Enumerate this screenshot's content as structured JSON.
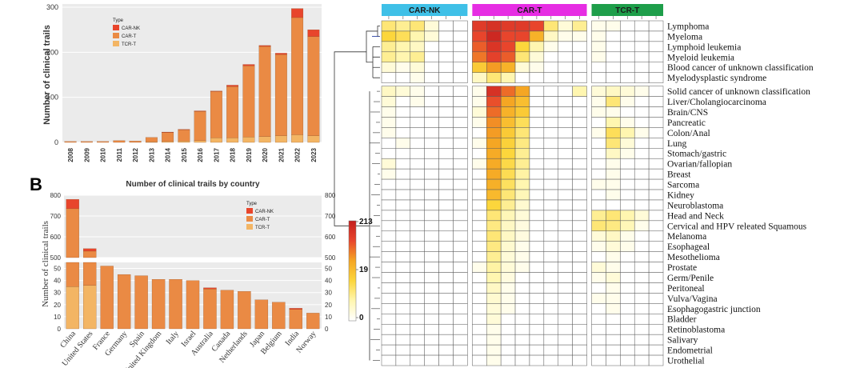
{
  "chart_data": [
    {
      "type": "bar",
      "title": "",
      "xlabel": "",
      "ylabel": "Number of clinical trails",
      "ylim": [
        0,
        300
      ],
      "yticks": [
        0,
        100,
        200,
        300
      ],
      "categories": [
        "2008",
        "2009",
        "2010",
        "2011",
        "2012",
        "2013",
        "2014",
        "2015",
        "2016",
        "2017",
        "2018",
        "2019",
        "2020",
        "2021",
        "2022",
        "2023"
      ],
      "series": [
        {
          "name": "CAR-NK",
          "color": "#e8452c",
          "values": [
            0,
            0,
            0,
            0,
            0,
            0,
            1,
            1,
            1,
            1,
            3,
            3,
            2,
            3,
            20,
            15
          ]
        },
        {
          "name": "CAR-T",
          "color": "#ea8a44",
          "values": [
            2,
            2,
            2,
            4,
            3,
            10,
            20,
            25,
            65,
            103,
            114,
            158,
            200,
            180,
            260,
            220
          ]
        },
        {
          "name": "TCR-T",
          "color": "#f3b564",
          "values": [
            0,
            0,
            0,
            0,
            0,
            1,
            2,
            3,
            4,
            10,
            10,
            12,
            13,
            15,
            17,
            15
          ]
        }
      ],
      "legend": {
        "title": "Type",
        "position": "top-center"
      }
    },
    {
      "type": "bar",
      "panel_label": "B",
      "title": "Number of clinical trails by country",
      "xlabel": "",
      "ylabel": "Number of clinical trails",
      "axis_break": {
        "lower": [
          0,
          55
        ],
        "upper": [
          500,
          800
        ]
      },
      "yticks_lower": [
        0,
        10,
        20,
        30,
        40,
        50
      ],
      "yticks_upper": [
        500,
        600,
        700,
        800
      ],
      "categories": [
        "China",
        "United States",
        "France",
        "Germany",
        "Spain",
        "United Kingdom",
        "Italy",
        "Israel",
        "Australia",
        "Canada",
        "Netherlands",
        "Japan",
        "Belgium",
        "India",
        "Norway"
      ],
      "series": [
        {
          "name": "CAR-NK",
          "color": "#e8452c",
          "values": [
            45,
            12,
            0,
            0,
            0,
            0,
            0,
            0,
            1,
            0,
            0,
            0,
            0,
            1,
            0
          ]
        },
        {
          "name": "CAR-T",
          "color": "#ea8a44",
          "values": [
            700,
            495,
            52,
            45,
            44,
            41,
            41,
            40,
            33,
            32,
            31,
            24,
            22,
            16,
            13
          ]
        },
        {
          "name": "TCR-T",
          "color": "#f3b564",
          "values": [
            35,
            36,
            0,
            0,
            0,
            0,
            0,
            0,
            0,
            0,
            0,
            0,
            0,
            0,
            0
          ]
        }
      ],
      "legend": {
        "title": "Type",
        "position": "top-right"
      }
    },
    {
      "type": "heatmap",
      "column_groups": [
        {
          "name": "CAR-NK",
          "color": "#3fc0e7",
          "ncols": 6
        },
        {
          "name": "CAR-T",
          "color": "#e62de3",
          "ncols": 8
        },
        {
          "name": "TCR-T",
          "color": "#1e9e4a",
          "ncols": 5
        }
      ],
      "colorbar": {
        "ticks": [
          "213",
          "19",
          "0"
        ],
        "colors": [
          "#ffffff",
          "#fff6b0",
          "#fcd63c",
          "#f5a623",
          "#e8452c",
          "#c41e1e"
        ]
      },
      "rows": [
        "Lymphoma",
        "Myeloma",
        "Lymphoid leukemia",
        "Myeloid leukemia",
        "Blood cancer of unknown classification",
        "Myelodysplastic syndrome",
        "Solid cancer of unknown classification",
        "Liver/Cholangiocarcinoma",
        "Brain/CNS",
        "Pancreatic",
        "Colon/Anal",
        "Lung",
        "Stomach/gastric",
        "Ovarian/fallopian",
        "Breast",
        "Sarcoma",
        "Kidney",
        "Neuroblastoma",
        "Head and Neck",
        "Cervical and HPV releated Squamous",
        "Melanoma",
        "Esophageal",
        "Mesothelioma",
        "Prostate",
        "Germ/Penile",
        "Peritoneal",
        "Vulva/Vagina",
        "Esophagogastric junction",
        "Bladder",
        "Retinoblastoma",
        "Salivary",
        "Endometrial",
        "Urothelial"
      ],
      "values": [
        [
          0.3,
          0.25,
          0.3,
          0.1,
          0,
          0,
          0.85,
          0.9,
          0.85,
          0.85,
          0.8,
          0.3,
          0.1,
          0.25,
          0.05,
          0.05,
          0,
          0,
          0
        ],
        [
          0.4,
          0.35,
          0.2,
          0.1,
          0,
          0,
          0.8,
          0.95,
          0.8,
          0.8,
          0.55,
          0.15,
          0.05,
          0.05,
          0.05,
          0,
          0,
          0,
          0
        ],
        [
          0.25,
          0.2,
          0.15,
          0,
          0,
          0,
          0.75,
          0.88,
          0.8,
          0.4,
          0.2,
          0.05,
          0,
          0,
          0.05,
          0,
          0,
          0,
          0
        ],
        [
          0.25,
          0.2,
          0.25,
          0,
          0,
          0,
          0.7,
          0.82,
          0.75,
          0.3,
          0.1,
          0,
          0,
          0,
          0.05,
          0,
          0,
          0,
          0
        ],
        [
          0.1,
          0.05,
          0.1,
          0,
          0,
          0,
          0.45,
          0.62,
          0.55,
          0.1,
          0.05,
          0,
          0,
          0,
          0,
          0,
          0,
          0,
          0
        ],
        [
          0,
          0,
          0.05,
          0,
          0,
          0,
          0.15,
          0.3,
          0.2,
          0,
          0,
          0,
          0,
          0,
          0,
          0,
          0,
          0,
          0
        ],
        [
          0.15,
          0.1,
          0.05,
          0,
          0,
          0,
          0.05,
          0.9,
          0.72,
          0.6,
          0,
          0,
          0,
          0.2,
          0.1,
          0.15,
          0.1,
          0.05,
          0
        ],
        [
          0.1,
          0,
          0.05,
          0,
          0,
          0,
          0.05,
          0.78,
          0.6,
          0.5,
          0,
          0,
          0,
          0,
          0.05,
          0.3,
          0.05,
          0,
          0
        ],
        [
          0.05,
          0,
          0,
          0,
          0,
          0,
          0.1,
          0.72,
          0.55,
          0.45,
          0,
          0,
          0,
          0,
          0.05,
          0.05,
          0,
          0,
          0
        ],
        [
          0.05,
          0,
          0,
          0,
          0,
          0,
          0.05,
          0.65,
          0.5,
          0.35,
          0,
          0,
          0,
          0,
          0,
          0.2,
          0.05,
          0,
          0
        ],
        [
          0.05,
          0,
          0,
          0,
          0,
          0,
          0,
          0.62,
          0.45,
          0.3,
          0,
          0,
          0,
          0,
          0.05,
          0.35,
          0.2,
          0.05,
          0
        ],
        [
          0,
          0.05,
          0,
          0,
          0,
          0,
          0.05,
          0.6,
          0.42,
          0.28,
          0,
          0,
          0,
          0,
          0,
          0.3,
          0.1,
          0,
          0
        ],
        [
          0,
          0,
          0,
          0,
          0,
          0,
          0,
          0.58,
          0.4,
          0.25,
          0,
          0,
          0,
          0,
          0,
          0.15,
          0.05,
          0,
          0
        ],
        [
          0.1,
          0,
          0,
          0,
          0,
          0,
          0.05,
          0.58,
          0.38,
          0.25,
          0,
          0,
          0,
          0,
          0,
          0.05,
          0,
          0,
          0
        ],
        [
          0.05,
          0,
          0,
          0,
          0,
          0,
          0,
          0.58,
          0.36,
          0.22,
          0,
          0,
          0,
          0,
          0,
          0.05,
          0,
          0,
          0
        ],
        [
          0,
          0,
          0,
          0,
          0,
          0,
          0,
          0.56,
          0.34,
          0.2,
          0,
          0,
          0,
          0,
          0.05,
          0.05,
          0,
          0,
          0
        ],
        [
          0,
          0,
          0,
          0,
          0,
          0,
          0,
          0.52,
          0.3,
          0.18,
          0,
          0,
          0,
          0,
          0,
          0.05,
          0,
          0,
          0
        ],
        [
          0,
          0,
          0,
          0,
          0,
          0,
          0,
          0.4,
          0.25,
          0.12,
          0,
          0,
          0,
          0,
          0,
          0,
          0,
          0,
          0
        ],
        [
          0,
          0,
          0,
          0,
          0,
          0,
          0,
          0.3,
          0.18,
          0.1,
          0,
          0,
          0,
          0,
          0.25,
          0.3,
          0.2,
          0.1,
          0
        ],
        [
          0,
          0,
          0,
          0,
          0,
          0,
          0,
          0.28,
          0.15,
          0.08,
          0,
          0,
          0,
          0,
          0.3,
          0.28,
          0.18,
          0.05,
          0
        ],
        [
          0,
          0,
          0,
          0,
          0,
          0,
          0,
          0.3,
          0.15,
          0.08,
          0,
          0,
          0,
          0,
          0.1,
          0.15,
          0.05,
          0,
          0
        ],
        [
          0,
          0,
          0,
          0,
          0,
          0,
          0,
          0.28,
          0.12,
          0.05,
          0,
          0,
          0,
          0,
          0.05,
          0.1,
          0.05,
          0,
          0
        ],
        [
          0,
          0,
          0,
          0,
          0,
          0,
          0,
          0.25,
          0.1,
          0.05,
          0,
          0,
          0,
          0,
          0,
          0.05,
          0,
          0,
          0
        ],
        [
          0,
          0,
          0,
          0,
          0,
          0,
          0.05,
          0.22,
          0.1,
          0.05,
          0,
          0,
          0,
          0,
          0.1,
          0.05,
          0,
          0,
          0
        ],
        [
          0,
          0,
          0,
          0,
          0,
          0,
          0,
          0.2,
          0.08,
          0,
          0,
          0,
          0,
          0,
          0.05,
          0.1,
          0,
          0,
          0
        ],
        [
          0,
          0,
          0,
          0,
          0,
          0,
          0,
          0.15,
          0.05,
          0,
          0,
          0,
          0,
          0,
          0,
          0.05,
          0,
          0,
          0
        ],
        [
          0,
          0,
          0,
          0,
          0,
          0,
          0,
          0.12,
          0.05,
          0,
          0,
          0,
          0,
          0,
          0.05,
          0.05,
          0,
          0,
          0
        ],
        [
          0,
          0,
          0,
          0,
          0,
          0,
          0,
          0.1,
          0.05,
          0,
          0,
          0,
          0,
          0,
          0,
          0.05,
          0,
          0,
          0
        ],
        [
          0,
          0,
          0,
          0,
          0,
          0,
          0,
          0.1,
          0,
          0,
          0,
          0,
          0,
          0,
          0,
          0,
          0,
          0,
          0
        ],
        [
          0,
          0,
          0,
          0,
          0,
          0,
          0,
          0.05,
          0,
          0,
          0,
          0,
          0,
          0,
          0,
          0,
          0,
          0,
          0
        ],
        [
          0,
          0,
          0,
          0,
          0,
          0,
          0,
          0.05,
          0,
          0,
          0,
          0,
          0,
          0,
          0,
          0,
          0,
          0,
          0
        ],
        [
          0,
          0,
          0,
          0,
          0,
          0,
          0,
          0.05,
          0,
          0,
          0,
          0,
          0,
          0,
          0,
          0,
          0,
          0,
          0
        ],
        [
          0,
          0,
          0,
          0,
          0,
          0,
          0,
          0.05,
          0,
          0,
          0,
          0,
          0,
          0,
          0,
          0,
          0,
          0,
          0
        ]
      ]
    }
  ]
}
